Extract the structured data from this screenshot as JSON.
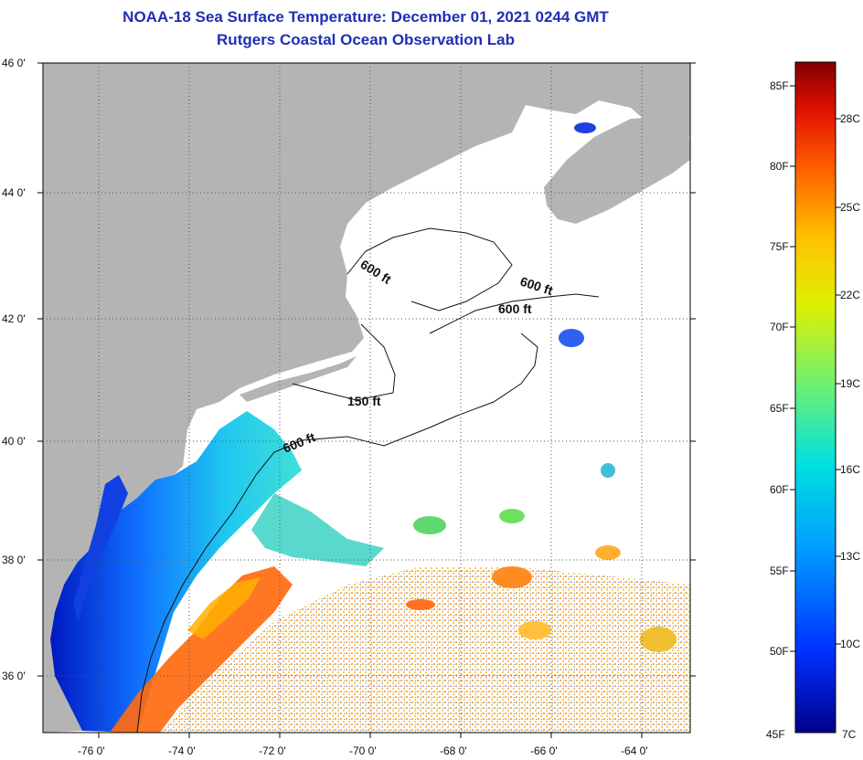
{
  "title": "NOAA-18 Sea Surface Temperature:  December 01, 2021 0244 GMT",
  "subtitle": "Rutgers Coastal Ocean Observation Lab",
  "lat_labels": [
    "46 0'",
    "44 0'",
    "42 0'",
    "40 0'",
    "38 0'",
    "36 0'"
  ],
  "lon_labels": [
    "-76 0'",
    "-74 0'",
    "-72 0'",
    "-70 0'",
    "-68 0'",
    "-66 0'",
    "-64 0'"
  ],
  "contour_labels": [
    "600 ft",
    "600 ft",
    "600 ft",
    "150 ft",
    "600 ft"
  ],
  "colorbar": {
    "fahrenheit": [
      "85F",
      "80F",
      "75F",
      "70F",
      "65F",
      "60F",
      "55F",
      "50F",
      "45F"
    ],
    "celsius": [
      "28C",
      "25C",
      "22C",
      "19C",
      "16C",
      "13C",
      "10C",
      "7C"
    ]
  },
  "colors": {
    "title": "#1f2fb4",
    "land": "#b4b4b4",
    "ocean_no_data": "#ffffff"
  }
}
